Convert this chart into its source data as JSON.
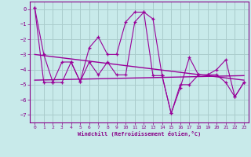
{
  "xlabel": "Windchill (Refroidissement éolien,°C)",
  "background_color": "#c8eaea",
  "grid_color": "#aacccc",
  "line_color": "#990099",
  "xlim": [
    -0.5,
    23.5
  ],
  "ylim": [
    -7.5,
    0.5
  ],
  "yticks": [
    0,
    -1,
    -2,
    -3,
    -4,
    -5,
    -6,
    -7
  ],
  "xticks": [
    0,
    1,
    2,
    3,
    4,
    5,
    6,
    7,
    8,
    9,
    10,
    11,
    12,
    13,
    14,
    15,
    16,
    17,
    18,
    19,
    20,
    21,
    22,
    23
  ],
  "series1_x": [
    0,
    1,
    2,
    3,
    4,
    5,
    6,
    7,
    8,
    9,
    10,
    11,
    12,
    13,
    14,
    15,
    16,
    17,
    18,
    19,
    20,
    21,
    22,
    23
  ],
  "series1_y": [
    0.1,
    -3.0,
    -4.85,
    -4.85,
    -3.5,
    -4.8,
    -2.55,
    -1.85,
    -3.0,
    -3.0,
    -0.85,
    -0.2,
    -0.2,
    -0.65,
    -4.4,
    -6.9,
    -5.2,
    -3.2,
    -4.35,
    -4.35,
    -4.0,
    -3.35,
    -5.8,
    -4.85
  ],
  "series2_x": [
    0,
    1,
    2,
    3,
    4,
    5,
    6,
    7,
    8,
    9,
    10,
    11,
    12,
    13,
    14,
    15,
    16,
    17,
    18,
    19,
    20,
    21,
    22,
    23
  ],
  "series2_y": [
    0.1,
    -4.85,
    -4.85,
    -3.5,
    -3.5,
    -4.8,
    -3.5,
    -4.35,
    -3.5,
    -4.35,
    -4.35,
    -0.85,
    -0.2,
    -4.4,
    -4.4,
    -6.9,
    -5.0,
    -5.0,
    -4.35,
    -4.35,
    -4.35,
    -4.85,
    -5.8,
    -4.85
  ],
  "trend1_x": [
    0,
    23
  ],
  "trend1_y": [
    -3.0,
    -4.7
  ],
  "trend2_x": [
    0,
    23
  ],
  "trend2_y": [
    -4.7,
    -4.4
  ]
}
